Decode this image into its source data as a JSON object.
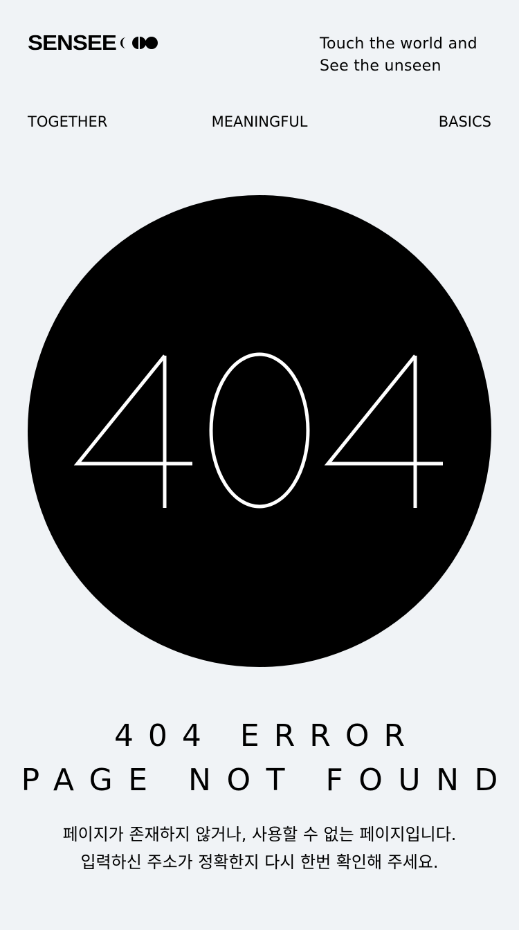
{
  "header": {
    "logo_text": "SENSEE",
    "tagline_line1": "Touch the world and",
    "tagline_line2": "See the unseen"
  },
  "nav": {
    "items": [
      {
        "label": "TOGETHER"
      },
      {
        "label": "MEANINGFUL"
      },
      {
        "label": "BASICS"
      }
    ]
  },
  "hero": {
    "code": "404"
  },
  "error": {
    "line1": "404 ERROR",
    "line2": "PAGE NOT FOUND"
  },
  "message": {
    "line1": "페이지가 존재하지 않거나, 사용할 수 없는 페이지입니다.",
    "line2": "입력하신 주소가 정확한지 다시 한번 확인해 주세요."
  },
  "colors": {
    "background": "#f0f3f6",
    "foreground": "#000000",
    "hero_text": "#ffffff"
  }
}
